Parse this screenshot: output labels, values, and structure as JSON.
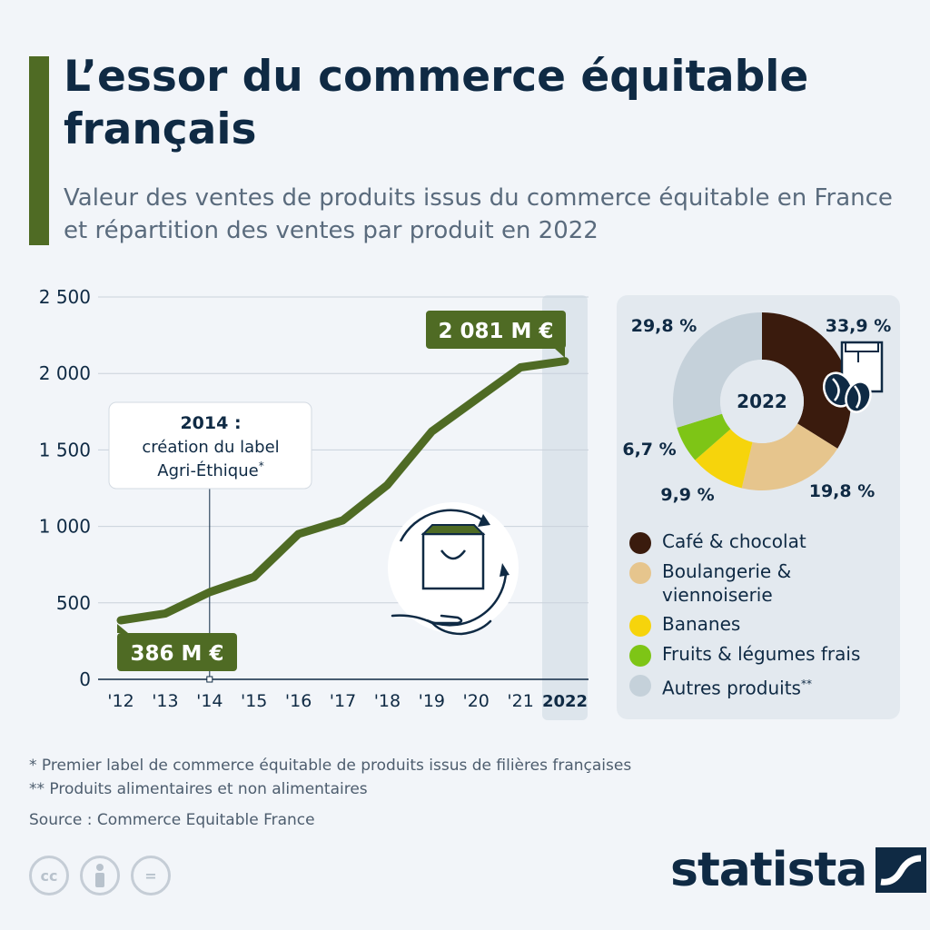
{
  "title": "L’essor du commerce équitable français",
  "subtitle": "Valeur des ventes de produits issus du commerce équitable en France et répartition des ventes par produit en 2022",
  "icons": [
    "shopping-bag-recycle-icon",
    "coffee-bag-beans-icon",
    "cc-icon",
    "attribution-icon",
    "no-derivatives-icon",
    "statista-logo-icon"
  ],
  "colors": {
    "accent": "#4f6b24",
    "line": "#4f6b24",
    "highlight_band": "#dde5ec",
    "text": "#0f2a44"
  },
  "chart_data": [
    {
      "type": "line",
      "x": [
        "'12",
        "'13",
        "'14",
        "'15",
        "'16",
        "'17",
        "'18",
        "'19",
        "'20",
        "'21",
        "2022"
      ],
      "values": [
        386,
        430,
        570,
        670,
        950,
        1040,
        1270,
        1620,
        1830,
        2040,
        2081
      ],
      "ylim": [
        0,
        2500
      ],
      "yticks": [
        0,
        500,
        1000,
        1500,
        2000,
        2500
      ],
      "ytick_labels": [
        "0",
        "500",
        "1 000",
        "1 500",
        "2 000",
        "2 500"
      ],
      "grid": true,
      "highlight_category": "2022",
      "labels": {
        "first": "386 M €",
        "last": "2 081 M €"
      },
      "annotation": {
        "year": "2014 :",
        "line1": "création du label",
        "line2": "Agri-Éthique",
        "mark": "*",
        "x": "'14"
      }
    },
    {
      "type": "pie",
      "center_label": "2022",
      "slices": [
        {
          "name": "Café & chocolat",
          "value": 33.9,
          "label": "33,9 %",
          "color": "#3a1b0d"
        },
        {
          "name": "Boulangerie & viennoiserie",
          "value": 19.8,
          "label": "19,8 %",
          "color": "#e6c58d"
        },
        {
          "name": "Bananes",
          "value": 9.9,
          "label": "9,9 %",
          "color": "#f6d40c"
        },
        {
          "name": "Fruits & légumes frais",
          "value": 6.7,
          "label": "6,7 %",
          "color": "#7ec516"
        },
        {
          "name": "Autres produits",
          "value": 29.8,
          "label": "29,8 %",
          "color": "#c5d1da"
        }
      ]
    }
  ],
  "legend": [
    {
      "line1": "Café & chocolat",
      "line2": "",
      "mark": ""
    },
    {
      "line1": "Boulangerie &",
      "line2": "viennoiserie",
      "mark": ""
    },
    {
      "line1": "Bananes",
      "line2": "",
      "mark": ""
    },
    {
      "line1": "Fruits & légumes frais",
      "line2": "",
      "mark": ""
    },
    {
      "line1": "Autres produits",
      "line2": "",
      "mark": "**"
    }
  ],
  "footnotes": {
    "note1": "*   Premier label de commerce équitable de produits issus de filières françaises",
    "note2": "** Produits alimentaires et non alimentaires",
    "source": "Source : Commerce Equitable France"
  },
  "cc_labels": {
    "cc": "cc",
    "nd": "="
  },
  "brand": {
    "name": "statista"
  }
}
